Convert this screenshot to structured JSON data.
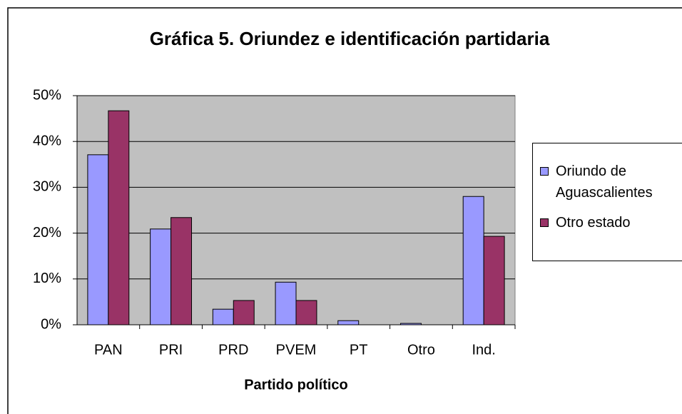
{
  "chart_data": {
    "type": "bar",
    "title": "Gráfica 5. Oriundez e identificación partidaria",
    "xlabel": "Partido político",
    "categories": [
      "PAN",
      "PRI",
      "PRD",
      "PVEM",
      "PT",
      "Otro",
      "Ind."
    ],
    "series": [
      {
        "name": "Oriundo de Aguascalientes",
        "color": "#9999ff",
        "values": [
          37.1,
          20.9,
          3.4,
          9.3,
          0.9,
          0.3,
          28.0
        ]
      },
      {
        "name": "Otro estado",
        "color": "#993366",
        "values": [
          46.7,
          23.4,
          5.3,
          5.3,
          0,
          0,
          19.3
        ]
      }
    ],
    "ylim": [
      0,
      50
    ],
    "yticks": [
      {
        "value": 0,
        "label": "0%"
      },
      {
        "value": 10,
        "label": "10%"
      },
      {
        "value": 20,
        "label": "20%"
      },
      {
        "value": 30,
        "label": "30%"
      },
      {
        "value": 40,
        "label": "40%"
      },
      {
        "value": 50,
        "label": "50%"
      }
    ],
    "grid": true,
    "legend": "right"
  }
}
